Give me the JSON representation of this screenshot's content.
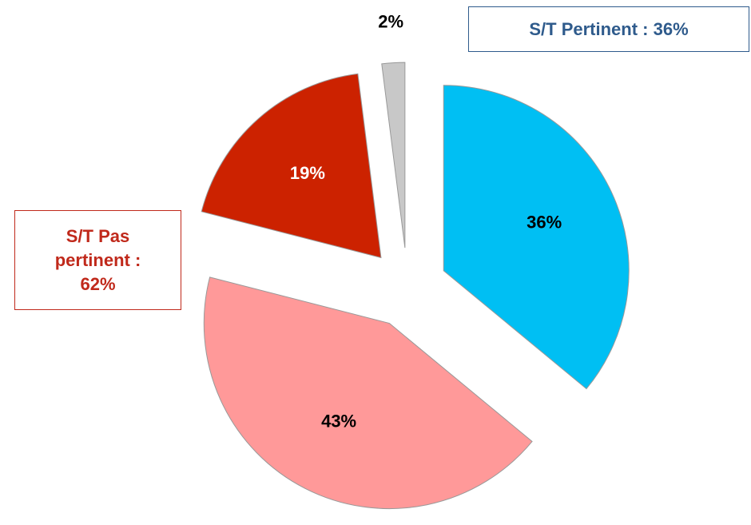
{
  "chart_data": {
    "type": "pie",
    "categories": [
      null,
      null,
      null,
      null
    ],
    "values": [
      36,
      43,
      19,
      2
    ],
    "value_labels": [
      "36%",
      "43%",
      "19%",
      "2%"
    ],
    "colors": [
      "#00bff3",
      "#ff9999",
      "#cc2200",
      "#c8c8c8"
    ],
    "exploded": true,
    "annotations": [
      {
        "lines": [
          "S/T Pertinent : 36%"
        ],
        "color": "#2f5b8c"
      },
      {
        "lines": [
          "S/T Pas",
          "pertinent :",
          "62%"
        ],
        "color": "#c0291b"
      }
    ]
  }
}
